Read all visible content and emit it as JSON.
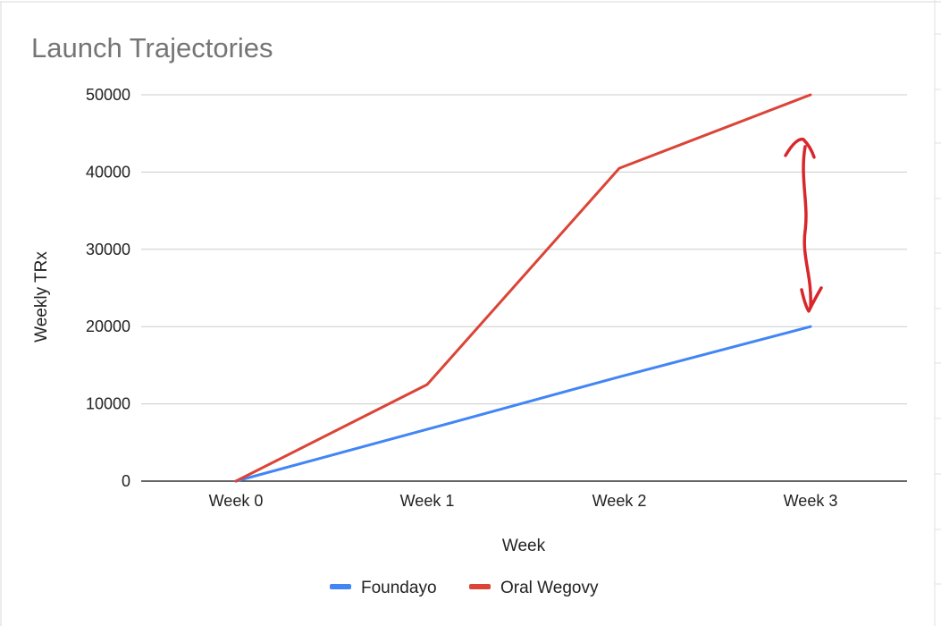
{
  "chart_data": {
    "type": "line",
    "title": "Launch Trajectories",
    "xlabel": "Week",
    "ylabel": "Weekly TRx",
    "categories": [
      "Week 0",
      "Week 1",
      "Week 2",
      "Week 3"
    ],
    "y_ticks": [
      "0",
      "10000",
      "20000",
      "30000",
      "40000",
      "50000"
    ],
    "ylim": [
      0,
      50000
    ],
    "grid": true,
    "legend_position": "bottom",
    "series": [
      {
        "name": "Foundayo",
        "color": "#4285f4",
        "values": [
          0,
          6700,
          13500,
          20000
        ]
      },
      {
        "name": "Oral Wegovy",
        "color": "#db4437",
        "values": [
          0,
          12500,
          40500,
          50000
        ]
      }
    ],
    "annotations": [
      {
        "type": "hand-drawn double-headed arrow",
        "color": "#d9262b",
        "x": "Week 3",
        "y_range": [
          22000,
          44000
        ]
      }
    ]
  }
}
